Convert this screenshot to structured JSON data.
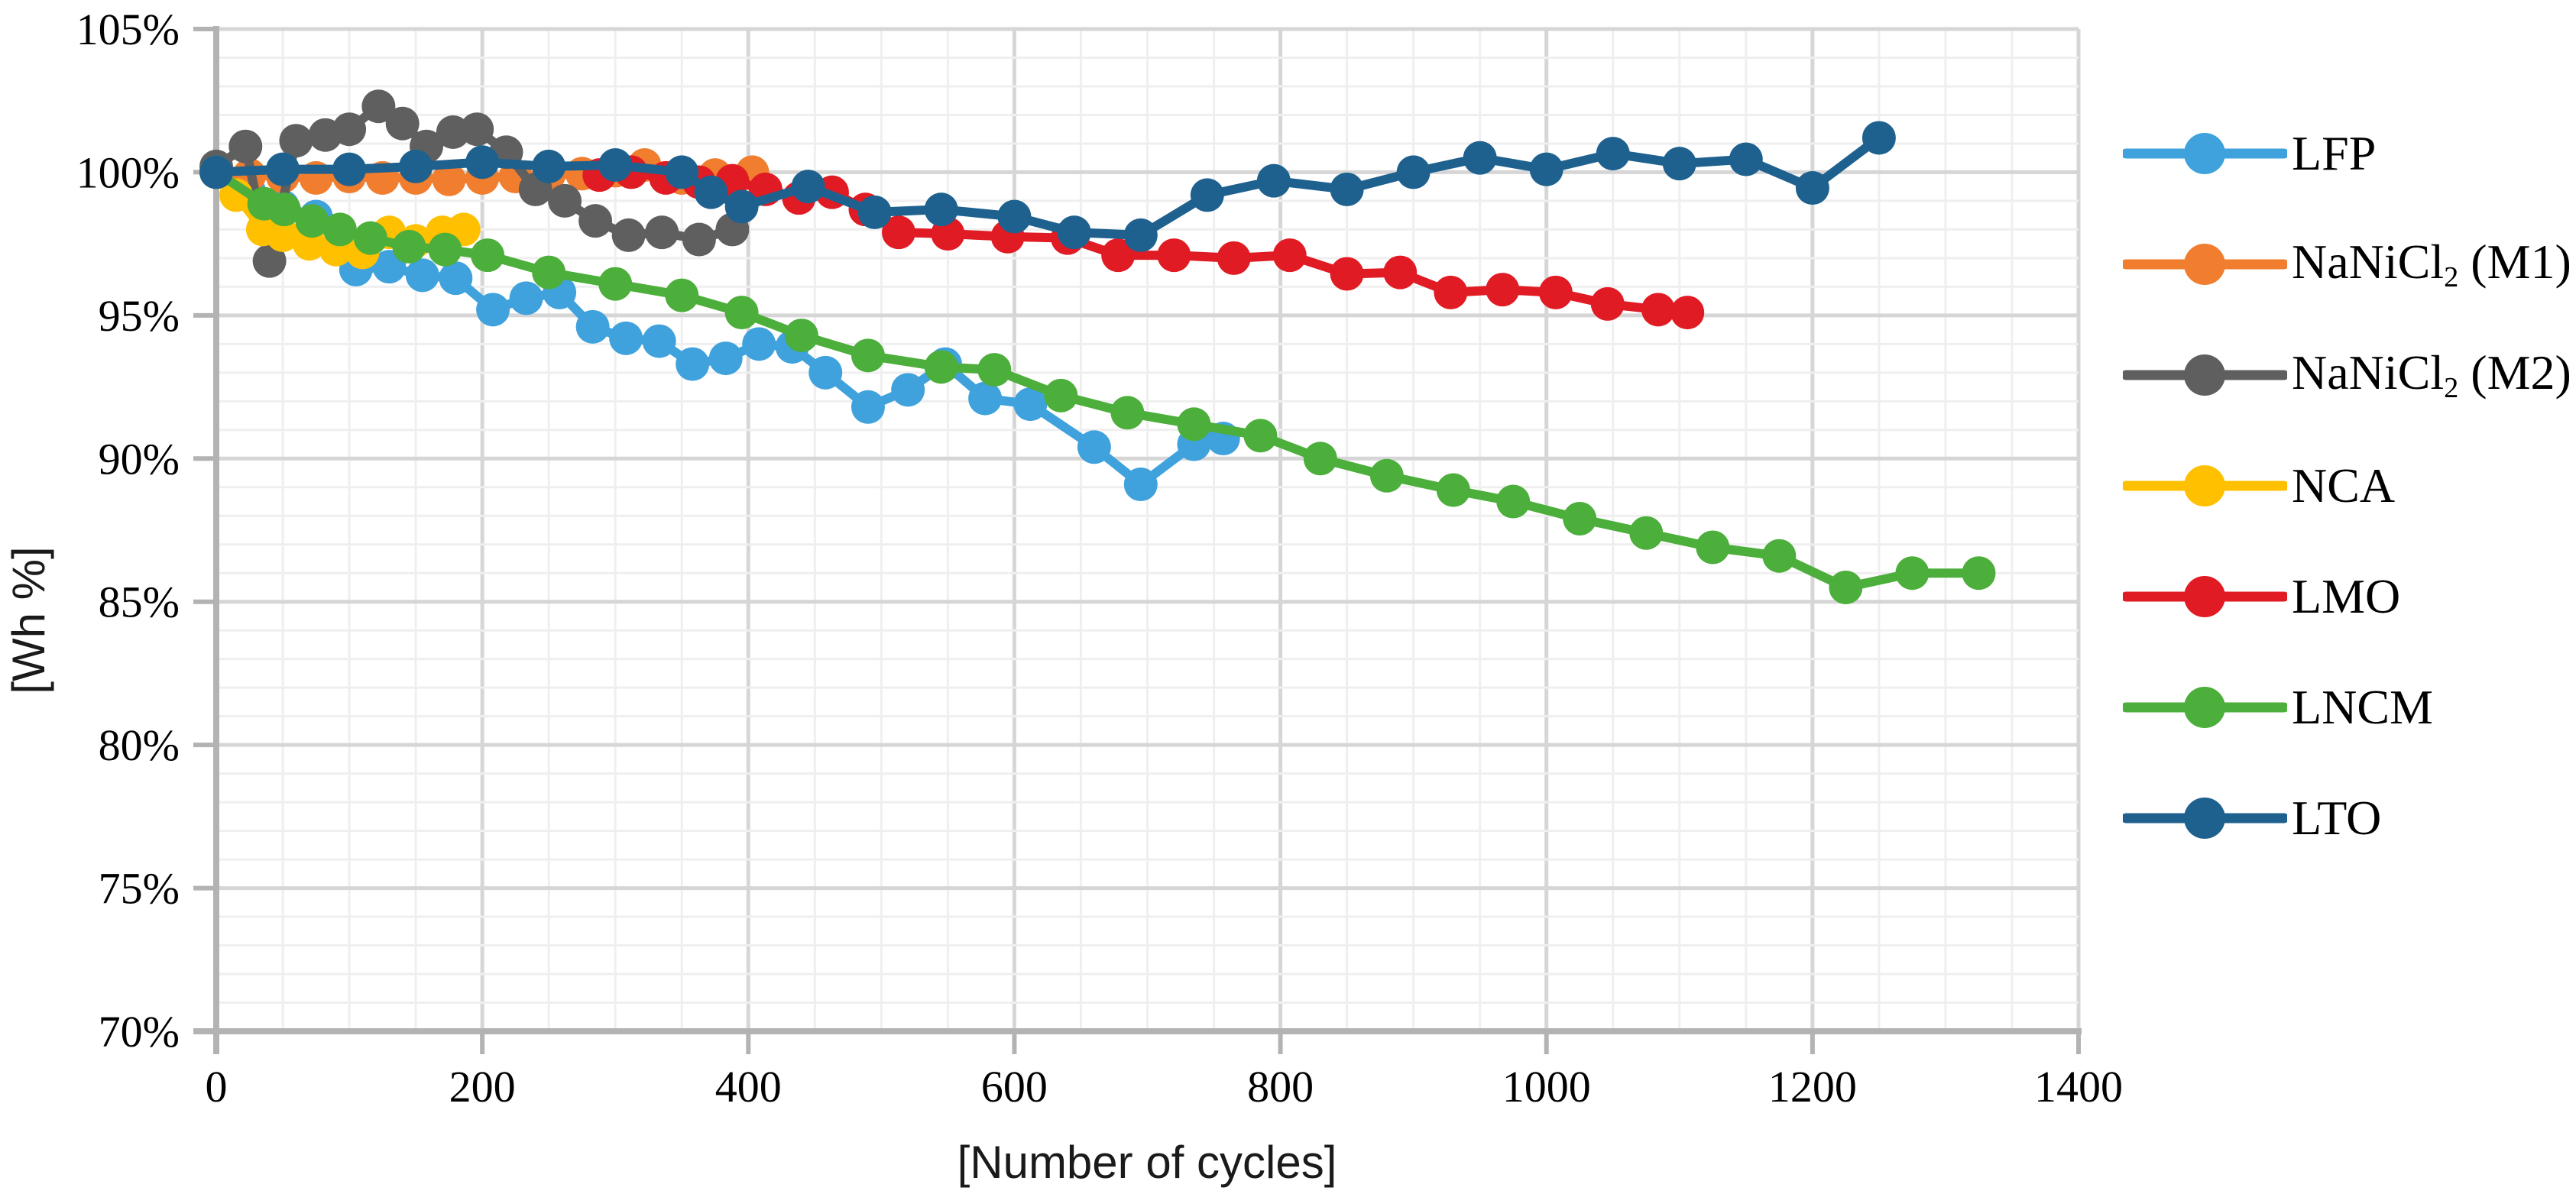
{
  "chart_data": {
    "type": "line",
    "xlabel": "[Number of cycles]",
    "ylabel": "[Wh %]",
    "xlim": [
      0,
      1400
    ],
    "ylim": [
      70,
      105
    ],
    "x_major_step": 200,
    "x_minor_step": 50,
    "y_major_step": 5,
    "y_minor_step": 1,
    "x_ticks": [
      "0",
      "200",
      "400",
      "600",
      "800",
      "1000",
      "1200",
      "1400"
    ],
    "y_ticks": [
      "105%",
      "100%",
      "95%",
      "90%",
      "85%",
      "80%",
      "75%",
      "70%"
    ],
    "grid": true,
    "legend_position": "right",
    "series": [
      {
        "name": "LFP",
        "color": "#3FA2DC",
        "points": [
          [
            0,
            100
          ],
          [
            25,
            99.3
          ],
          [
            50,
            98.8
          ],
          [
            75,
            98.45
          ],
          [
            105,
            96.6
          ],
          [
            130,
            96.7
          ],
          [
            155,
            96.4
          ],
          [
            180,
            96.3
          ],
          [
            208,
            95.2
          ],
          [
            233,
            95.6
          ],
          [
            258,
            95.8
          ],
          [
            283,
            94.6
          ],
          [
            308,
            94.2
          ],
          [
            333,
            94.1
          ],
          [
            358,
            93.3
          ],
          [
            383,
            93.5
          ],
          [
            408,
            94.0
          ],
          [
            433,
            93.9
          ],
          [
            458,
            93.0
          ],
          [
            490,
            91.8
          ],
          [
            520,
            92.4
          ],
          [
            548,
            93.3
          ],
          [
            578,
            92.1
          ],
          [
            612,
            91.9
          ],
          [
            660,
            90.4
          ],
          [
            695,
            89.1
          ],
          [
            735,
            90.5
          ],
          [
            757,
            90.7
          ]
        ]
      },
      {
        "name": "NaNiCl2 (M1)",
        "color": "#F07E2E",
        "points": [
          [
            0,
            100
          ],
          [
            25,
            99.9
          ],
          [
            50,
            99.85
          ],
          [
            75,
            99.8
          ],
          [
            100,
            99.85
          ],
          [
            125,
            99.8
          ],
          [
            150,
            99.8
          ],
          [
            175,
            99.75
          ],
          [
            200,
            99.8
          ],
          [
            225,
            99.85
          ],
          [
            250,
            99.9
          ],
          [
            275,
            99.95
          ],
          [
            300,
            100.05
          ],
          [
            322,
            100.25
          ],
          [
            350,
            99.8
          ],
          [
            375,
            99.9
          ],
          [
            403,
            100.0
          ]
        ]
      },
      {
        "name": "NaNiCl2 (M2)",
        "color": "#5F5F5F",
        "points": [
          [
            0,
            100.2
          ],
          [
            22,
            100.9
          ],
          [
            40,
            96.9
          ],
          [
            60,
            101.1
          ],
          [
            82,
            101.3
          ],
          [
            100,
            101.5
          ],
          [
            122,
            102.3
          ],
          [
            140,
            101.7
          ],
          [
            158,
            100.9
          ],
          [
            178,
            101.4
          ],
          [
            196,
            101.5
          ],
          [
            218,
            100.7
          ],
          [
            240,
            99.4
          ],
          [
            262,
            99.0
          ],
          [
            285,
            98.3
          ],
          [
            310,
            97.8
          ],
          [
            335,
            97.9
          ],
          [
            363,
            97.65
          ],
          [
            388,
            98.0
          ]
        ]
      },
      {
        "name": "NCA",
        "color": "#FFC000",
        "points": [
          [
            0,
            100
          ],
          [
            15,
            99.2
          ],
          [
            35,
            98.0
          ],
          [
            50,
            97.8
          ],
          [
            70,
            97.5
          ],
          [
            90,
            97.3
          ],
          [
            110,
            97.2
          ],
          [
            130,
            97.9
          ],
          [
            150,
            97.6
          ],
          [
            170,
            97.9
          ],
          [
            186,
            98.0
          ]
        ]
      },
      {
        "name": "LMO",
        "color": "#E01B24",
        "points": [
          [
            288,
            99.9
          ],
          [
            312,
            100.0
          ],
          [
            338,
            99.8
          ],
          [
            363,
            99.65
          ],
          [
            388,
            99.7
          ],
          [
            413,
            99.4
          ],
          [
            438,
            99.1
          ],
          [
            463,
            99.3
          ],
          [
            488,
            98.7
          ],
          [
            513,
            97.9
          ],
          [
            550,
            97.85
          ],
          [
            595,
            97.75
          ],
          [
            640,
            97.7
          ],
          [
            678,
            97.1
          ],
          [
            720,
            97.1
          ],
          [
            765,
            97.0
          ],
          [
            807,
            97.1
          ],
          [
            850,
            96.45
          ],
          [
            890,
            96.5
          ],
          [
            928,
            95.8
          ],
          [
            967,
            95.9
          ],
          [
            1007,
            95.8
          ],
          [
            1046,
            95.4
          ],
          [
            1084,
            95.2
          ],
          [
            1106,
            95.1
          ]
        ]
      },
      {
        "name": "LNCM",
        "color": "#4CAE3B",
        "points": [
          [
            0,
            100
          ],
          [
            36,
            98.9
          ],
          [
            51,
            98.7
          ],
          [
            72,
            98.3
          ],
          [
            93,
            98.0
          ],
          [
            116,
            97.7
          ],
          [
            145,
            97.4
          ],
          [
            172,
            97.3
          ],
          [
            204,
            97.1
          ],
          [
            250,
            96.5
          ],
          [
            300,
            96.1
          ],
          [
            350,
            95.7
          ],
          [
            395,
            95.1
          ],
          [
            440,
            94.3
          ],
          [
            490,
            93.6
          ],
          [
            545,
            93.2
          ],
          [
            585,
            93.1
          ],
          [
            635,
            92.2
          ],
          [
            685,
            91.6
          ],
          [
            735,
            91.2
          ],
          [
            785,
            90.8
          ],
          [
            830,
            90.0
          ],
          [
            880,
            89.4
          ],
          [
            930,
            88.9
          ],
          [
            975,
            88.5
          ],
          [
            1025,
            87.9
          ],
          [
            1075,
            87.4
          ],
          [
            1125,
            86.9
          ],
          [
            1175,
            86.6
          ],
          [
            1225,
            85.5
          ],
          [
            1275,
            86.0
          ],
          [
            1325,
            86.0
          ]
        ]
      },
      {
        "name": "LTO",
        "color": "#1F618E",
        "points": [
          [
            0,
            100.0
          ],
          [
            50,
            100.1
          ],
          [
            100,
            100.1
          ],
          [
            150,
            100.2
          ],
          [
            200,
            100.35
          ],
          [
            250,
            100.2
          ],
          [
            300,
            100.25
          ],
          [
            350,
            100.0
          ],
          [
            372,
            99.3
          ],
          [
            395,
            98.8
          ],
          [
            445,
            99.5
          ],
          [
            495,
            98.6
          ],
          [
            545,
            98.7
          ],
          [
            600,
            98.45
          ],
          [
            645,
            97.9
          ],
          [
            695,
            97.8
          ],
          [
            745,
            99.2
          ],
          [
            795,
            99.7
          ],
          [
            850,
            99.4
          ],
          [
            900,
            100.0
          ],
          [
            950,
            100.5
          ],
          [
            1000,
            100.1
          ],
          [
            1050,
            100.65
          ],
          [
            1100,
            100.3
          ],
          [
            1150,
            100.45
          ],
          [
            1200,
            99.45
          ],
          [
            1250,
            101.2
          ]
        ]
      }
    ]
  },
  "legend": {
    "items": [
      {
        "base": "LFP",
        "sub": "",
        "rest": "",
        "color": "#3FA2DC"
      },
      {
        "base": "NaNiCl",
        "sub": "2",
        "rest": " (M1)",
        "color": "#F07E2E"
      },
      {
        "base": "NaNiCl",
        "sub": "2",
        "rest": " (M2)",
        "color": "#5F5F5F"
      },
      {
        "base": "NCA",
        "sub": "",
        "rest": "",
        "color": "#FFC000"
      },
      {
        "base": "LMO",
        "sub": "",
        "rest": "",
        "color": "#E01B24"
      },
      {
        "base": "LNCM",
        "sub": "",
        "rest": "",
        "color": "#4CAE3B"
      },
      {
        "base": "LTO",
        "sub": "",
        "rest": "",
        "color": "#1F618E"
      }
    ]
  },
  "style": {
    "grid_minor_color": "#EFEFEF",
    "grid_major_color": "#D6D6D6",
    "axis_color": "#B3B3B3",
    "background": "#FFFFFF"
  }
}
